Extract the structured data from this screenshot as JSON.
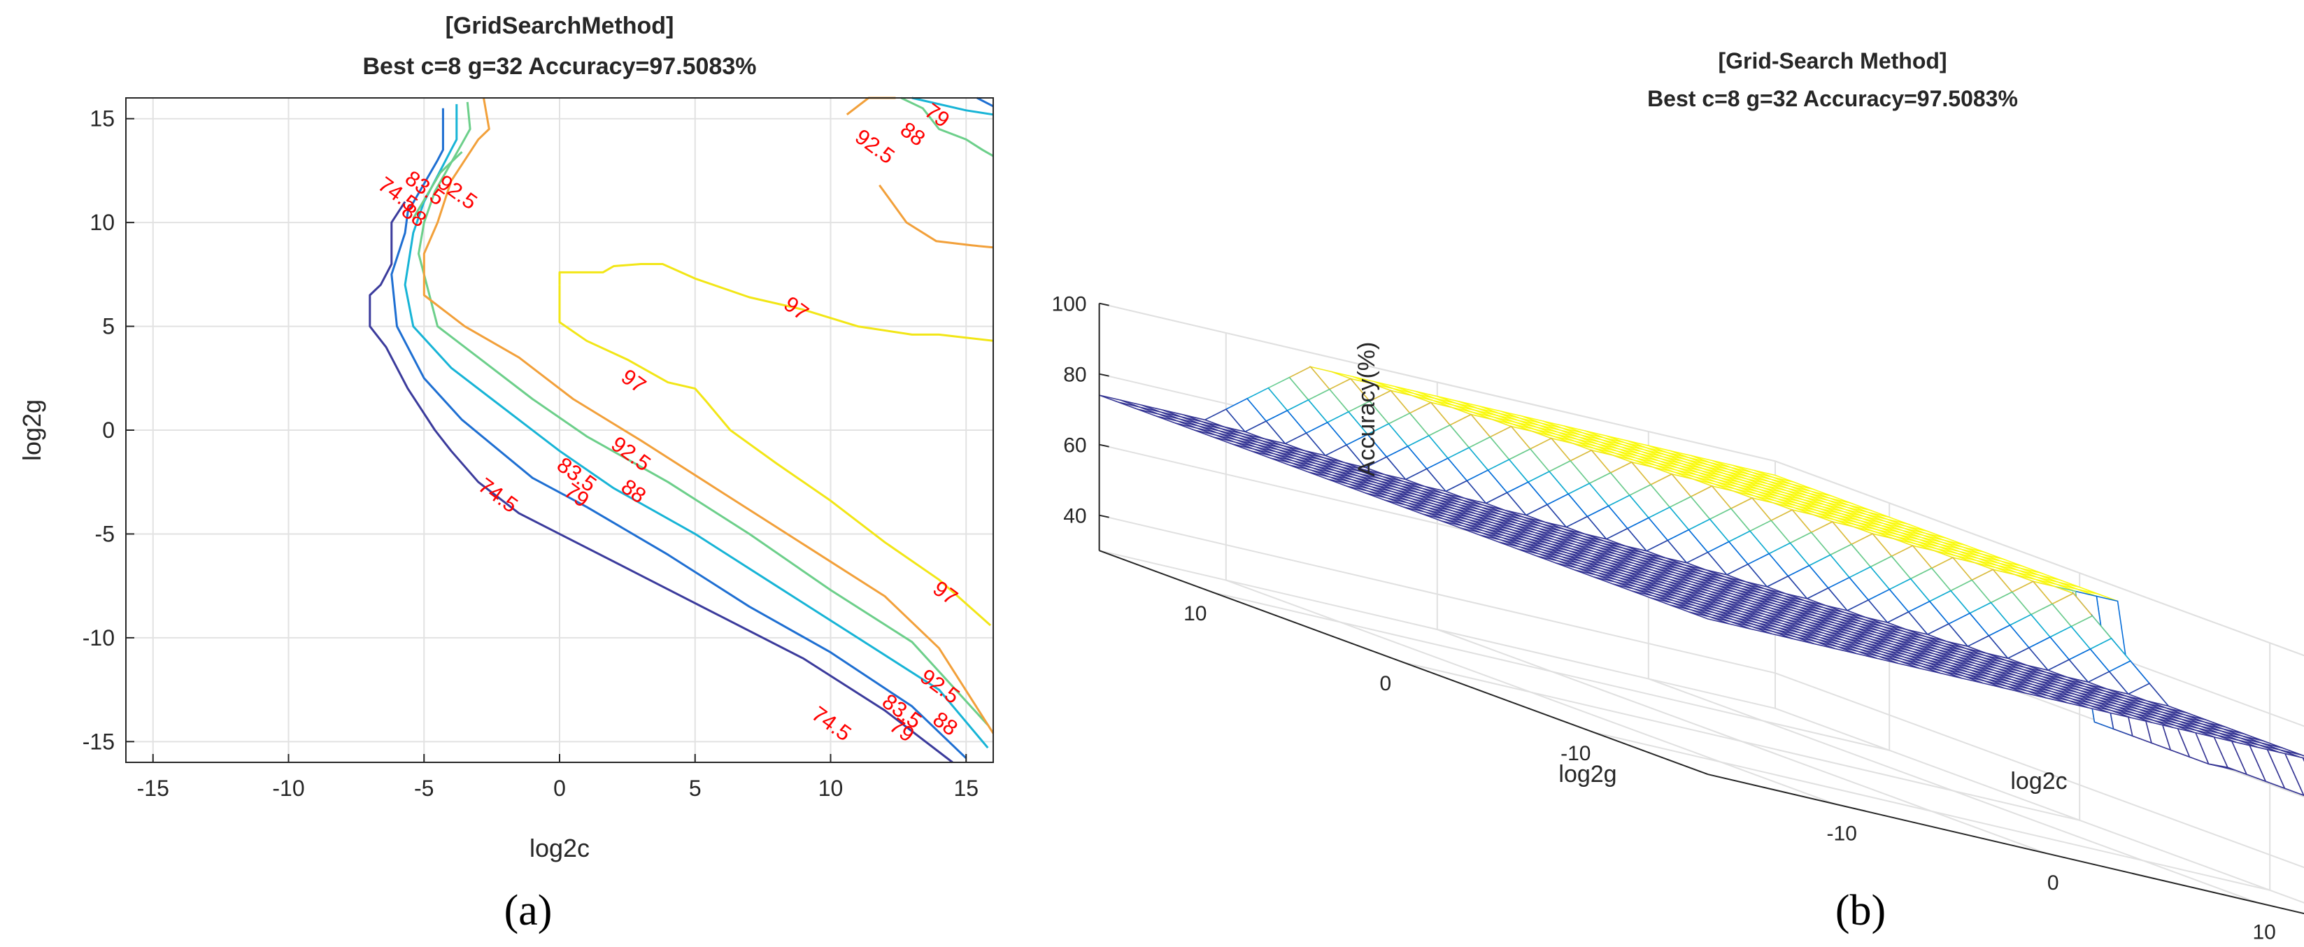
{
  "panel_labels": [
    "(a)",
    "(b)"
  ],
  "chart_data": [
    {
      "type": "contour",
      "title": "[GridSearchMethod]",
      "subtitle": "Best c=8 g=32 Accuracy=97.5083%",
      "xlabel": "log2c",
      "ylabel": "log2g",
      "xlim": [
        -16,
        16
      ],
      "ylim": [
        -16,
        16
      ],
      "xticks": [
        -15,
        -10,
        -5,
        0,
        5,
        10,
        15
      ],
      "yticks": [
        15,
        10,
        5,
        0,
        -5,
        -10,
        -15
      ],
      "grid": true,
      "colors": {
        "74.5": "#3b3b9c",
        "79": "#1e6fd2",
        "83.5": "#17b4d6",
        "88": "#6ccf8a",
        "92.5": "#f2a03a",
        "97": "#f2e616"
      },
      "levels": [
        {
          "level": 74.5,
          "points": [
            [
              -5.7,
              11
            ],
            [
              -6.2,
              10
            ],
            [
              -6.2,
              8
            ],
            [
              -6.6,
              7
            ],
            [
              -7,
              6.5
            ],
            [
              -7,
              5
            ],
            [
              -6.4,
              4
            ],
            [
              -5.6,
              2
            ],
            [
              -4.6,
              0
            ],
            [
              -4,
              -1
            ],
            [
              -3,
              -2.5
            ],
            [
              -1.5,
              -4
            ],
            [
              0,
              -5
            ],
            [
              3,
              -7
            ],
            [
              6,
              -9
            ],
            [
              9,
              -11
            ],
            [
              12,
              -13.5
            ],
            [
              14.5,
              -16
            ]
          ],
          "labels": [
            {
              "text": "74.5",
              "x": -2.3,
              "y": -3.2
            },
            {
              "text": "74.5",
              "x": 10,
              "y": -14.2
            }
          ]
        },
        {
          "level": 79,
          "points": [
            [
              -4.3,
              15.5
            ],
            [
              -4.3,
              13.5
            ],
            [
              -4.5,
              13
            ],
            [
              -5.6,
              10.5
            ],
            [
              -5.7,
              9.5
            ],
            [
              -6.2,
              7.5
            ],
            [
              -6,
              5
            ],
            [
              -5,
              2.5
            ],
            [
              -3.6,
              0.5
            ],
            [
              -1,
              -2.3
            ],
            [
              1,
              -3.7
            ],
            [
              4,
              -6
            ],
            [
              7,
              -8.5
            ],
            [
              10,
              -10.7
            ],
            [
              13,
              -13.3
            ],
            [
              15,
              -15.8
            ]
          ],
          "labels": [
            {
              "text": "79",
              "x": 0.6,
              "y": -3.2
            },
            {
              "text": "79",
              "x": 12.6,
              "y": -14.5
            }
          ]
        },
        {
          "level": 83.5,
          "points": [
            [
              -3.8,
              15.7
            ],
            [
              -3.8,
              14
            ],
            [
              -4,
              13.5
            ],
            [
              -5,
              11
            ],
            [
              -5.4,
              9.5
            ],
            [
              -5.7,
              7
            ],
            [
              -5.4,
              5
            ],
            [
              -4,
              3
            ],
            [
              -2.5,
              1.5
            ],
            [
              0,
              -1
            ],
            [
              2,
              -2.8
            ],
            [
              5,
              -5
            ],
            [
              8,
              -7.5
            ],
            [
              11,
              -10
            ],
            [
              14,
              -12.5
            ],
            [
              15.8,
              -15.3
            ]
          ],
          "labels": [
            {
              "text": "83.5",
              "x": 0.6,
              "y": -2.2
            },
            {
              "text": "83.5",
              "x": 12.6,
              "y": -13.6
            }
          ]
        },
        {
          "level": 88,
          "points": [
            [
              -3.4,
              15.8
            ],
            [
              -3.3,
              14.5
            ],
            [
              -3.6,
              13.8
            ],
            [
              -4.6,
              11.5
            ],
            [
              -5,
              10
            ],
            [
              -5.2,
              8.5
            ],
            [
              -4.8,
              6.5
            ],
            [
              -4.5,
              5
            ],
            [
              -3,
              3.5
            ],
            [
              -1,
              1.5
            ],
            [
              1,
              -0.3
            ],
            [
              4,
              -2.5
            ],
            [
              7,
              -5
            ],
            [
              10,
              -7.7
            ],
            [
              13,
              -10.2
            ],
            [
              15.8,
              -14.2
            ]
          ],
          "labels": [
            {
              "text": "88",
              "x": 2.7,
              "y": -3
            },
            {
              "text": "88",
              "x": 14.2,
              "y": -14.2
            }
          ]
        },
        {
          "level": 92.5,
          "points": [
            [
              -2.8,
              16
            ],
            [
              -2.6,
              14.5
            ],
            [
              -3,
              14
            ],
            [
              -4,
              12
            ],
            [
              -4.5,
              10
            ],
            [
              -5,
              8.5
            ],
            [
              -5,
              6.5
            ],
            [
              -3.5,
              5
            ],
            [
              -1.5,
              3.5
            ],
            [
              0.5,
              1.5
            ],
            [
              3,
              -0.5
            ],
            [
              6,
              -3
            ],
            [
              9,
              -5.5
            ],
            [
              12,
              -8
            ],
            [
              14,
              -10.5
            ],
            [
              16,
              -14.6
            ]
          ],
          "labels": [
            {
              "text": "92.5",
              "x": 2.6,
              "y": -1.2
            },
            {
              "text": "92.5",
              "x": 14,
              "y": -12.4
            }
          ]
        },
        {
          "level": 97,
          "points": [
            [
              0,
              7
            ],
            [
              0,
              5.2
            ],
            [
              1,
              4.3
            ],
            [
              2.5,
              3.4
            ],
            [
              4,
              2.3
            ],
            [
              5,
              2
            ],
            [
              5.4,
              1.4
            ],
            [
              6.3,
              0
            ],
            [
              8,
              -1.6
            ],
            [
              10,
              -3.4
            ],
            [
              12,
              -5.4
            ],
            [
              14,
              -7.2
            ],
            [
              15.9,
              -9.4
            ]
          ],
          "labels": [
            {
              "text": "97",
              "x": 2.7,
              "y": 2.3
            },
            {
              "text": "97",
              "x": 14.2,
              "y": -7.9
            }
          ]
        },
        {
          "level": 97,
          "points": [
            [
              0,
              7
            ],
            [
              0,
              7.6
            ],
            [
              1.6,
              7.6
            ],
            [
              2,
              7.9
            ],
            [
              3,
              8
            ],
            [
              3.8,
              8
            ],
            [
              5,
              7.3
            ],
            [
              7,
              6.4
            ],
            [
              9,
              5.8
            ],
            [
              11,
              5
            ],
            [
              13,
              4.6
            ],
            [
              14,
              4.6
            ],
            [
              16,
              4.3
            ]
          ],
          "labels": [
            {
              "text": "97",
              "x": 8.7,
              "y": 5.8
            }
          ]
        },
        {
          "level": 92.5,
          "points": [
            [
              10.6,
              15.2
            ],
            [
              11.4,
              16
            ],
            [
              12.4,
              16
            ]
          ],
          "labels": [
            {
              "text": "92.5",
              "x": 11.6,
              "y": 13.6
            }
          ]
        },
        {
          "level": 92.5,
          "points": [
            [
              11.8,
              11.8
            ],
            [
              12.8,
              10
            ],
            [
              13.9,
              9.1
            ],
            [
              15.2,
              8.9
            ],
            [
              16,
              8.8
            ]
          ],
          "labels": []
        },
        {
          "level": 88,
          "points": [
            [
              12.6,
              16
            ],
            [
              13.4,
              15.5
            ],
            [
              14,
              14.5
            ],
            [
              15,
              14
            ],
            [
              15.6,
              13.5
            ],
            [
              16,
              13.2
            ]
          ],
          "labels": [
            {
              "text": "88",
              "x": 13,
              "y": 14.2
            }
          ]
        },
        {
          "level": 83.5,
          "points": [
            [
              13,
              16
            ],
            [
              15,
              15.4
            ],
            [
              16,
              15.2
            ]
          ],
          "labels": []
        },
        {
          "level": 79,
          "points": [
            [
              15.4,
              16
            ],
            [
              16,
              15.6
            ]
          ],
          "labels": [
            {
              "text": "79",
              "x": 13.9,
              "y": 15.1
            }
          ]
        },
        {
          "level": 88,
          "points": [
            [
              -5.4,
              10.2
            ],
            [
              -4.4,
              12.4
            ],
            [
              -3.6,
              13.4
            ]
          ],
          "labels": [
            {
              "text": "74.5",
              "x": -6,
              "y": 11.3
            },
            {
              "text": "83.5",
              "x": -5,
              "y": 11.6
            },
            {
              "text": "88",
              "x": -5.4,
              "y": 10.3
            },
            {
              "text": "92.5",
              "x": -3.8,
              "y": 11.4
            }
          ]
        }
      ]
    },
    {
      "type": "surface",
      "title": "[Grid-Search Method]",
      "subtitle": "Best c=8 g=32 Accuracy=97.5083%",
      "xlabel": "log2c",
      "ylabel": "log2g",
      "zlabel": "Accuracy(%)",
      "zlim": [
        30,
        100
      ],
      "zticks": [
        100,
        80,
        60,
        40
      ],
      "gticks": [
        10,
        0,
        -10
      ],
      "cticks": [
        -10,
        0,
        10
      ],
      "xlim": [
        -16,
        16
      ],
      "ylim": [
        -16,
        16
      ],
      "plateau_accuracy": 96,
      "base_accuracy": 74,
      "grid": true
    }
  ]
}
